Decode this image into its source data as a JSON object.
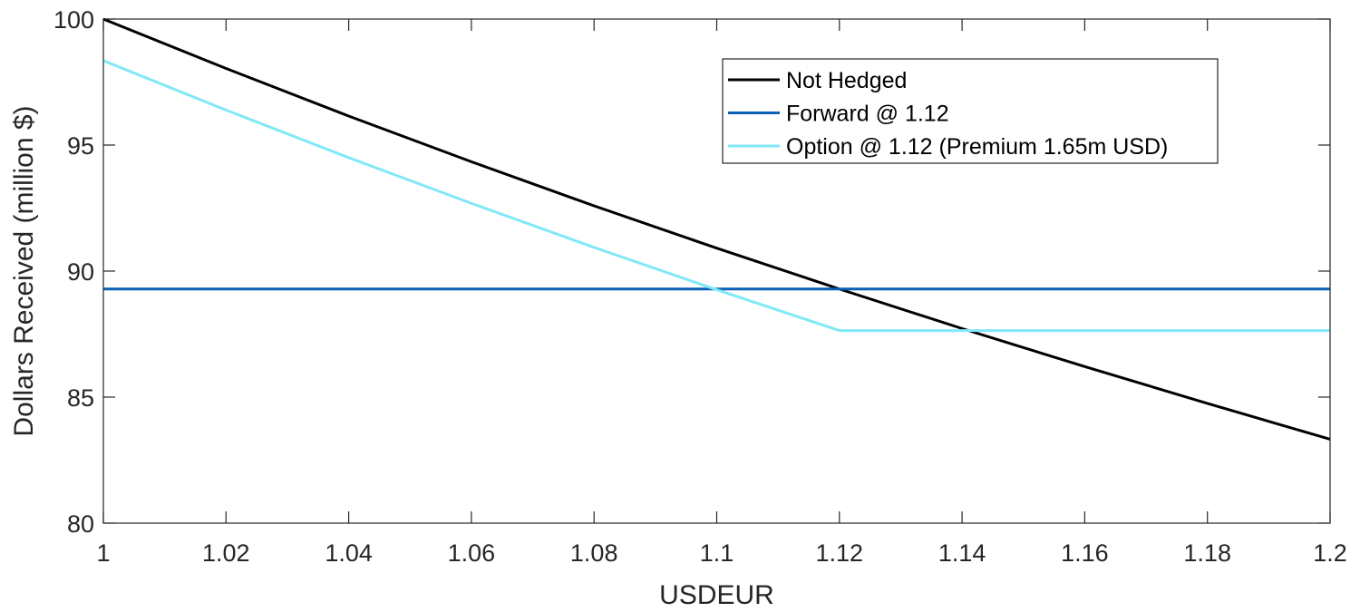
{
  "chart_data": {
    "type": "line",
    "xlabel": "USDEUR",
    "ylabel": "Dollars Received (million $)",
    "xlim": [
      1,
      1.2
    ],
    "ylim": [
      80,
      100
    ],
    "x_ticks": [
      1,
      1.02,
      1.04,
      1.06,
      1.08,
      1.1,
      1.12,
      1.14,
      1.16,
      1.18,
      1.2
    ],
    "x_tick_labels": [
      "1",
      "1.02",
      "1.04",
      "1.06",
      "1.08",
      "1.1",
      "1.12",
      "1.14",
      "1.16",
      "1.18",
      "1.2"
    ],
    "y_ticks": [
      80,
      85,
      90,
      95,
      100
    ],
    "y_tick_labels": [
      "80",
      "85",
      "90",
      "95",
      "100"
    ],
    "grid": false,
    "legend_position": "top-right",
    "series": [
      {
        "name": "Not Hedged",
        "color": "#000000",
        "x": [
          1,
          1.02,
          1.04,
          1.06,
          1.08,
          1.1,
          1.12,
          1.14,
          1.16,
          1.18,
          1.2
        ],
        "y": [
          100,
          98.04,
          96.15,
          94.34,
          92.59,
          90.91,
          89.29,
          87.72,
          86.21,
          84.75,
          83.33
        ]
      },
      {
        "name": "Forward @ 1.12",
        "color": "#0a5fb4",
        "x": [
          1,
          1.2
        ],
        "y": [
          89.29,
          89.29
        ]
      },
      {
        "name": "Option @ 1.12 (Premium 1.65m USD)",
        "color": "#80e8f8",
        "x": [
          1,
          1.02,
          1.04,
          1.06,
          1.08,
          1.1,
          1.12,
          1.14,
          1.16,
          1.18,
          1.2
        ],
        "y": [
          98.35,
          96.39,
          94.5,
          92.69,
          90.94,
          89.26,
          87.64,
          87.64,
          87.64,
          87.64,
          87.64
        ]
      }
    ]
  }
}
